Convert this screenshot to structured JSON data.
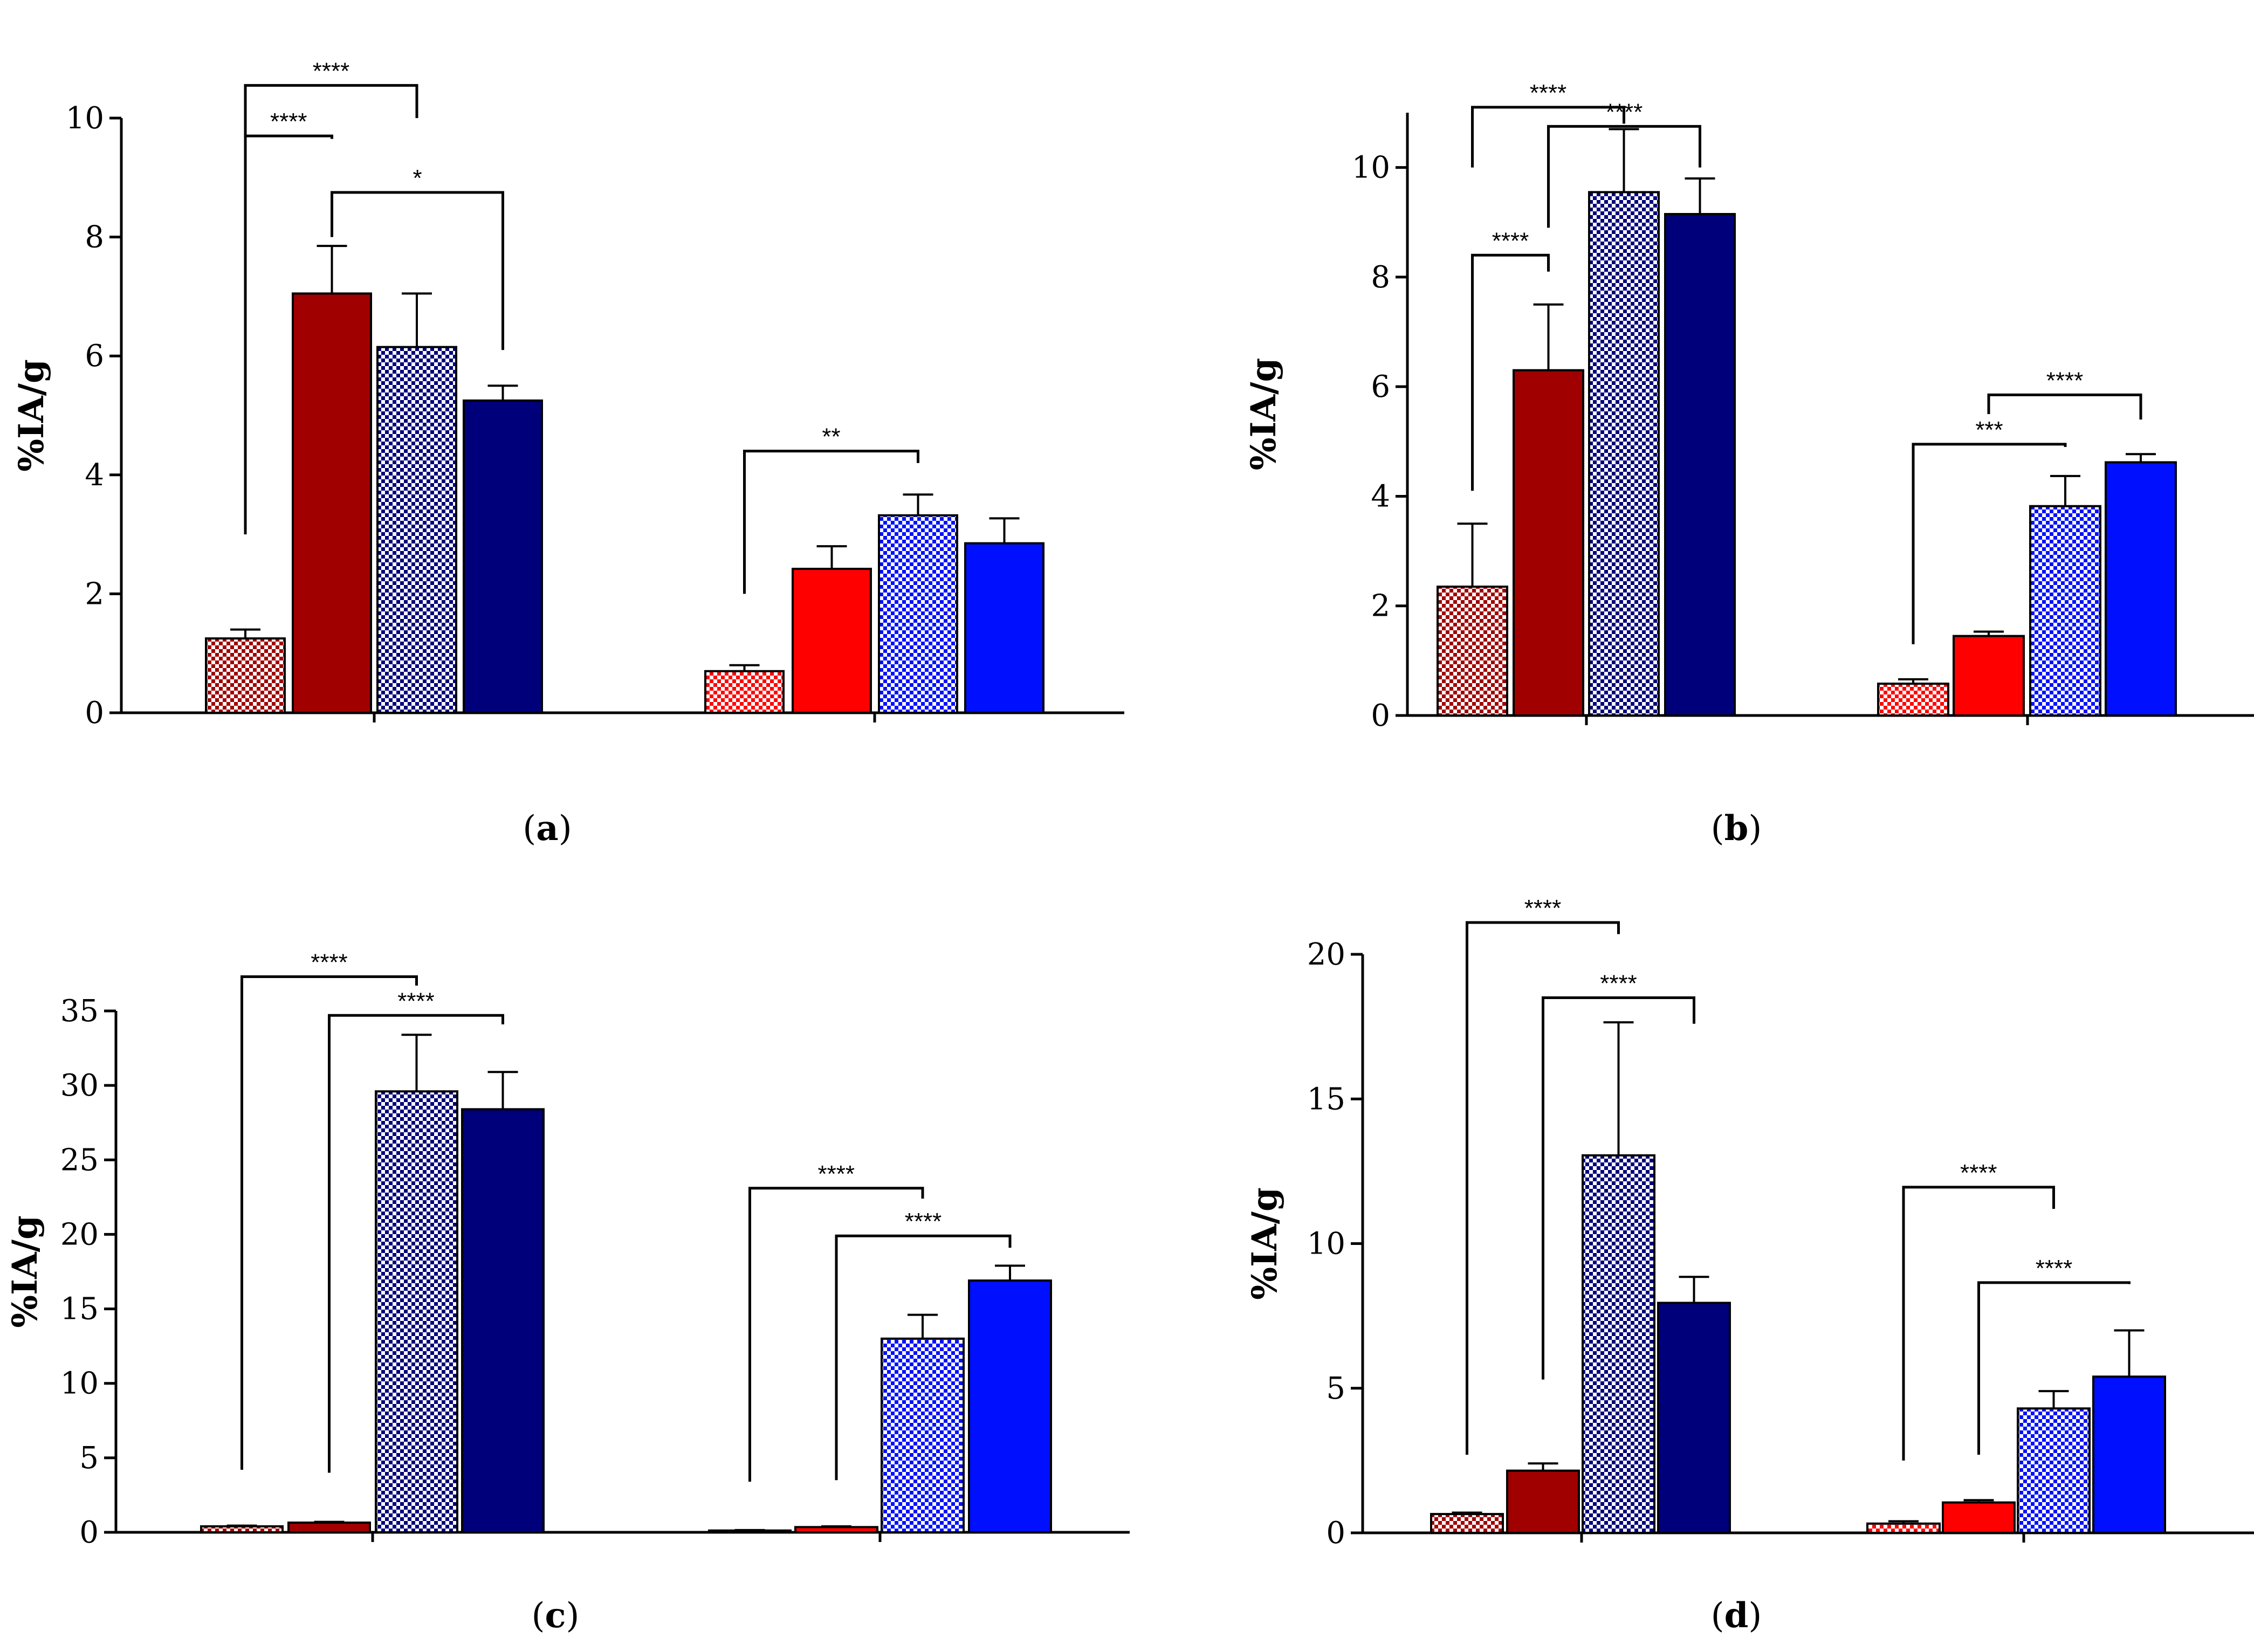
{
  "figure": {
    "colors": {
      "dark_red": "#a00000",
      "red": "#ff0000",
      "dark_blue": "#00007a",
      "blue": "#0010ff",
      "axis": "#000000",
      "checker_light": "#ffffff"
    }
  },
  "chart_data": [
    {
      "id": "a",
      "type": "bar",
      "panel_label": "(a)",
      "panel_label_parts": {
        "open": "(",
        "letter": "a",
        "close": ")"
      },
      "ylabel": "%IA/g",
      "ylim": [
        0,
        10
      ],
      "yticks": [
        0,
        2,
        4,
        6,
        8,
        10
      ],
      "ytick_labels": [
        "0",
        "2",
        "4",
        "6",
        "8",
        "10"
      ],
      "groups": [
        {
          "bars": [
            {
              "value": 1.25,
              "error": 0.15,
              "style": "checker",
              "color": "#a00000"
            },
            {
              "value": 7.05,
              "error": 0.8,
              "style": "solid",
              "color": "#a00000"
            },
            {
              "value": 6.15,
              "error": 0.9,
              "style": "checker",
              "color": "#00007a"
            },
            {
              "value": 5.25,
              "error": 0.25,
              "style": "solid",
              "color": "#00007a"
            }
          ]
        },
        {
          "bars": [
            {
              "value": 0.7,
              "error": 0.1,
              "style": "checker",
              "color": "#ff0000"
            },
            {
              "value": 2.42,
              "error": 0.38,
              "style": "solid",
              "color": "#ff0000"
            },
            {
              "value": 3.32,
              "error": 0.35,
              "style": "checker",
              "color": "#0010ff"
            },
            {
              "value": 2.85,
              "error": 0.42,
              "style": "solid",
              "color": "#0010ff"
            }
          ]
        }
      ],
      "significance": [
        {
          "group": 0,
          "from": 0,
          "to": 1,
          "drop_from": 3.0,
          "drop_to": 9.65,
          "level": 9.7,
          "label": "****"
        },
        {
          "group": 0,
          "from": 0,
          "to": 2,
          "drop_from": 9.7,
          "drop_to": 10.0,
          "level": 10.55,
          "label": "****"
        },
        {
          "group": 0,
          "from": 1,
          "to": 3,
          "drop_from": 8.0,
          "drop_to": 6.1,
          "level": 8.75,
          "label": "*"
        },
        {
          "group": 1,
          "from": 0,
          "to": 2,
          "drop_from": 2.0,
          "drop_to": 4.2,
          "level": 4.4,
          "label": "**"
        }
      ]
    },
    {
      "id": "b",
      "type": "bar",
      "panel_label": "(b)",
      "panel_label_parts": {
        "open": "(",
        "letter": "b",
        "close": ")"
      },
      "ylabel": "%IA/g",
      "ylim": [
        0,
        11
      ],
      "yticks": [
        0,
        2,
        4,
        6,
        8,
        10
      ],
      "ytick_labels": [
        "0",
        "2",
        "4",
        "6",
        "8",
        "10"
      ],
      "groups": [
        {
          "bars": [
            {
              "value": 2.35,
              "error": 1.15,
              "style": "checker",
              "color": "#a00000"
            },
            {
              "value": 6.3,
              "error": 1.2,
              "style": "solid",
              "color": "#a00000"
            },
            {
              "value": 9.55,
              "error": 1.15,
              "style": "checker",
              "color": "#00007a"
            },
            {
              "value": 9.15,
              "error": 0.65,
              "style": "solid",
              "color": "#00007a"
            }
          ]
        },
        {
          "bars": [
            {
              "value": 0.58,
              "error": 0.08,
              "style": "checker",
              "color": "#ff0000"
            },
            {
              "value": 1.45,
              "error": 0.08,
              "style": "solid",
              "color": "#ff0000"
            },
            {
              "value": 3.82,
              "error": 0.55,
              "style": "checker",
              "color": "#0010ff"
            },
            {
              "value": 4.62,
              "error": 0.15,
              "style": "solid",
              "color": "#0010ff"
            }
          ]
        }
      ],
      "significance": [
        {
          "group": 0,
          "from": 0,
          "to": 1,
          "drop_from": 4.1,
          "drop_to": 8.1,
          "level": 8.4,
          "label": "****"
        },
        {
          "group": 0,
          "from": 0,
          "to": 2,
          "drop_from": 10.0,
          "drop_to": 10.8,
          "level": 11.1,
          "label": "****"
        },
        {
          "group": 0,
          "from": 1,
          "to": 3,
          "drop_from": 8.9,
          "drop_to": 10.0,
          "level": 10.75,
          "label": "****"
        },
        {
          "group": 1,
          "from": 0,
          "to": 2,
          "drop_from": 1.3,
          "drop_to": 4.9,
          "level": 4.95,
          "label": "***"
        },
        {
          "group": 1,
          "from": 1,
          "to": 3,
          "drop_from": 5.5,
          "drop_to": 5.4,
          "level": 5.85,
          "label": "****"
        }
      ]
    },
    {
      "id": "c",
      "type": "bar",
      "panel_label": "(c)",
      "panel_label_parts": {
        "open": "(",
        "letter": "c",
        "close": ")"
      },
      "ylabel": "%IA/g",
      "ylim": [
        0,
        35
      ],
      "yticks": [
        0,
        5,
        10,
        15,
        20,
        25,
        30,
        35
      ],
      "ytick_labels": [
        "0",
        "5",
        "10",
        "15",
        "20",
        "25",
        "30",
        "35"
      ],
      "groups": [
        {
          "bars": [
            {
              "value": 0.4,
              "error": 0.05,
              "style": "checker",
              "color": "#a00000"
            },
            {
              "value": 0.65,
              "error": 0.05,
              "style": "solid",
              "color": "#a00000"
            },
            {
              "value": 29.6,
              "error": 3.8,
              "style": "checker",
              "color": "#00007a"
            },
            {
              "value": 28.4,
              "error": 2.5,
              "style": "solid",
              "color": "#00007a"
            }
          ]
        },
        {
          "bars": [
            {
              "value": 0.12,
              "error": 0.03,
              "style": "checker",
              "color": "#ff0000"
            },
            {
              "value": 0.35,
              "error": 0.05,
              "style": "solid",
              "color": "#ff0000"
            },
            {
              "value": 13.0,
              "error": 1.6,
              "style": "checker",
              "color": "#0010ff"
            },
            {
              "value": 16.9,
              "error": 1.0,
              "style": "solid",
              "color": "#0010ff"
            }
          ]
        }
      ],
      "significance": [
        {
          "group": 0,
          "from": 0,
          "to": 2,
          "drop_from": 4.2,
          "drop_to": 36.7,
          "level": 37.3,
          "label": "****"
        },
        {
          "group": 0,
          "from": 1,
          "to": 3,
          "drop_from": 4.0,
          "drop_to": 34.1,
          "level": 34.7,
          "label": "****"
        },
        {
          "group": 1,
          "from": 0,
          "to": 2,
          "drop_from": 3.4,
          "drop_to": 22.4,
          "level": 23.1,
          "label": "****"
        },
        {
          "group": 1,
          "from": 1,
          "to": 3,
          "drop_from": 3.5,
          "drop_to": 19.1,
          "level": 19.9,
          "label": "****"
        }
      ]
    },
    {
      "id": "d",
      "type": "bar",
      "panel_label": "(d)",
      "panel_label_parts": {
        "open": "(",
        "letter": "d",
        "close": ")"
      },
      "ylabel": "%IA/g",
      "ylim": [
        0,
        20
      ],
      "yticks": [
        0,
        5,
        10,
        15,
        20
      ],
      "ytick_labels": [
        "0",
        "5",
        "10",
        "15",
        "20"
      ],
      "groups": [
        {
          "bars": [
            {
              "value": 0.65,
              "error": 0.05,
              "style": "checker",
              "color": "#a00000"
            },
            {
              "value": 2.15,
              "error": 0.25,
              "style": "solid",
              "color": "#a00000"
            },
            {
              "value": 13.05,
              "error": 4.6,
              "style": "checker",
              "color": "#00007a"
            },
            {
              "value": 7.95,
              "error": 0.9,
              "style": "solid",
              "color": "#00007a"
            }
          ]
        },
        {
          "bars": [
            {
              "value": 0.32,
              "error": 0.08,
              "style": "checker",
              "color": "#ff0000"
            },
            {
              "value": 1.05,
              "error": 0.08,
              "style": "solid",
              "color": "#ff0000"
            },
            {
              "value": 4.3,
              "error": 0.6,
              "style": "checker",
              "color": "#0010ff"
            },
            {
              "value": 5.4,
              "error": 1.6,
              "style": "solid",
              "color": "#0010ff"
            }
          ]
        }
      ],
      "significance": [
        {
          "group": 0,
          "from": 0,
          "to": 2,
          "drop_from": 2.7,
          "drop_to": 20.7,
          "level": 21.1,
          "label": "****"
        },
        {
          "group": 0,
          "from": 1,
          "to": 3,
          "drop_from": 5.3,
          "drop_to": 17.6,
          "level": 18.5,
          "label": "****"
        },
        {
          "group": 1,
          "from": 0,
          "to": 2,
          "drop_from": 2.5,
          "drop_to": 11.2,
          "level": 11.95,
          "label": "****"
        },
        {
          "group": 1,
          "from": 1,
          "to": 3,
          "drop_from": 2.7,
          "drop_to": 8.6,
          "level": 8.65,
          "label": "****"
        }
      ]
    }
  ]
}
